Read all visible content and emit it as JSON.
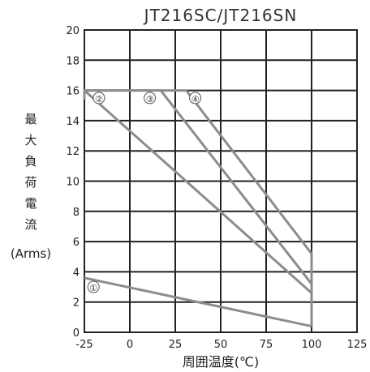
{
  "chart_data": {
    "type": "line",
    "title": "JT216SC/JT216SN",
    "xlabel": "周囲温度(℃)",
    "ylabel_chars": [
      "最",
      "大",
      "負",
      "荷",
      "電",
      "流"
    ],
    "ylabel_unit": "(Arms)",
    "xlim": [
      -25,
      125
    ],
    "ylim": [
      0,
      20
    ],
    "x_ticks": [
      -25,
      0,
      25,
      50,
      75,
      100,
      125
    ],
    "y_ticks": [
      0,
      2,
      4,
      6,
      8,
      10,
      12,
      14,
      16,
      18,
      20
    ],
    "grid": true,
    "series": [
      {
        "name": "①",
        "x": [
          -25,
          100
        ],
        "y": [
          3.6,
          0.4
        ],
        "label_at": [
          -20,
          3.0
        ]
      },
      {
        "name": "②",
        "x": [
          -25,
          -25,
          100,
          100
        ],
        "y": [
          15.4,
          16.0,
          2.6,
          0.4
        ],
        "label_at": [
          -17,
          15.5
        ]
      },
      {
        "name": "③",
        "x": [
          -25,
          17,
          100,
          100
        ],
        "y": [
          16.0,
          16.0,
          3.2,
          0.4
        ],
        "label_at": [
          11,
          15.5
        ]
      },
      {
        "name": "④",
        "x": [
          -25,
          31,
          100,
          100
        ],
        "y": [
          16.0,
          16.0,
          5.2,
          0.4
        ],
        "label_at": [
          36,
          15.5
        ]
      }
    ]
  }
}
